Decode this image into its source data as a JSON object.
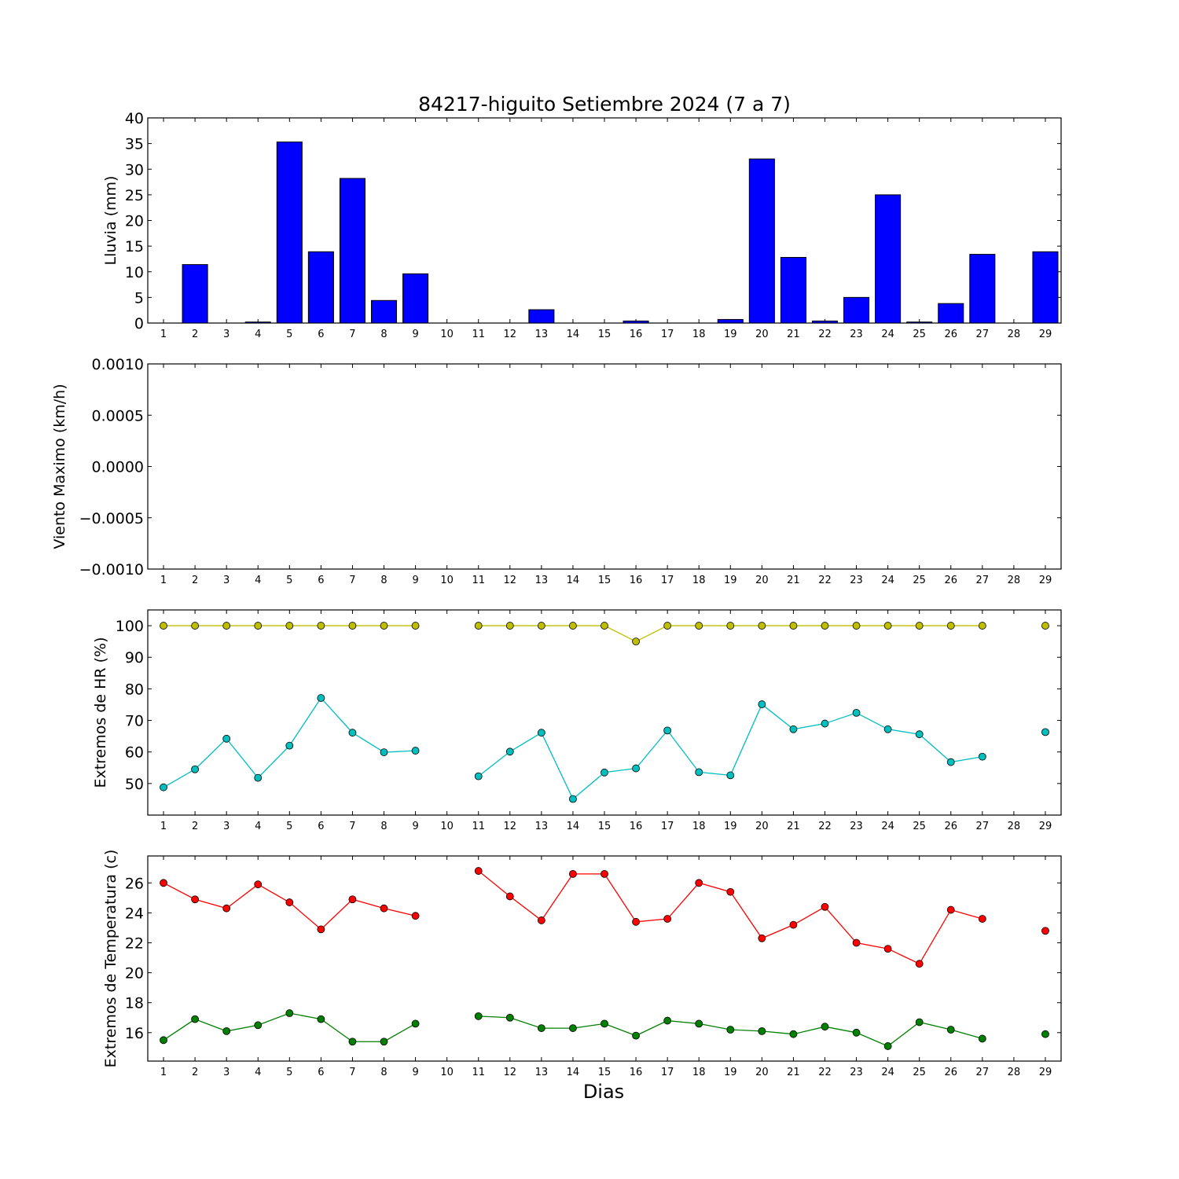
{
  "figure": {
    "title": "84217-higuito Setiembre 2024  (7 a 7)",
    "xlabel": "Dias"
  },
  "chart_data": [
    {
      "type": "bar",
      "ylabel": "Lluvia (mm)",
      "ylim": [
        0,
        40
      ],
      "yticks": [
        0,
        5,
        10,
        15,
        20,
        25,
        30,
        35,
        40
      ],
      "ytick_labels": [
        "0",
        "5",
        "10",
        "15",
        "20",
        "25",
        "30",
        "35",
        "40"
      ],
      "categories": [
        1,
        2,
        3,
        4,
        5,
        6,
        7,
        8,
        9,
        10,
        11,
        12,
        13,
        14,
        15,
        16,
        17,
        18,
        19,
        20,
        21,
        22,
        23,
        24,
        25,
        26,
        27,
        28,
        29
      ],
      "values": [
        0,
        11.4,
        0,
        0.2,
        35.3,
        13.9,
        28.2,
        4.4,
        9.6,
        0,
        0,
        0,
        2.6,
        0,
        0,
        0.4,
        0,
        0,
        0.7,
        32,
        12.8,
        0.4,
        5,
        25,
        0.2,
        3.8,
        13.4,
        0,
        13.9
      ],
      "color": "#0000ff"
    },
    {
      "type": "line",
      "ylabel": "Viento Maximo (km/h)",
      "ylim": [
        -0.001,
        0.001
      ],
      "yticks": [
        -0.001,
        -0.0005,
        0,
        0.0005,
        0.001
      ],
      "ytick_labels": [
        "−0.0010",
        "−0.0005",
        "0.0000",
        "0.0005",
        "0.0010"
      ],
      "categories": [
        1,
        2,
        3,
        4,
        5,
        6,
        7,
        8,
        9,
        10,
        11,
        12,
        13,
        14,
        15,
        16,
        17,
        18,
        19,
        20,
        21,
        22,
        23,
        24,
        25,
        26,
        27,
        28,
        29
      ],
      "series": []
    },
    {
      "type": "line",
      "ylabel": "Extremos de HR (%)",
      "ylim": [
        40,
        105
      ],
      "yticks": [
        50,
        60,
        70,
        80,
        90,
        100
      ],
      "ytick_labels": [
        "50",
        "60",
        "70",
        "80",
        "90",
        "100"
      ],
      "categories": [
        1,
        2,
        3,
        4,
        5,
        6,
        7,
        8,
        9,
        10,
        11,
        12,
        13,
        14,
        15,
        16,
        17,
        18,
        19,
        20,
        21,
        22,
        23,
        24,
        25,
        26,
        27,
        28,
        29
      ],
      "series": [
        {
          "color": "#bfbf00",
          "values": [
            100,
            100,
            100,
            100,
            100,
            100,
            100,
            100,
            100,
            null,
            100,
            100,
            100,
            100,
            100,
            95,
            100,
            100,
            100,
            100,
            100,
            100,
            100,
            100,
            100,
            100,
            100,
            null,
            100
          ]
        },
        {
          "color": "#00bfbf",
          "values": [
            48.8,
            54.5,
            64.2,
            51.8,
            62,
            77.1,
            66.1,
            59.9,
            60.4,
            null,
            52.3,
            60.1,
            66.1,
            45.1,
            53.5,
            54.8,
            66.8,
            53.6,
            52.6,
            75.1,
            67.2,
            69,
            72.4,
            67.2,
            65.6,
            56.8,
            58.5,
            null,
            66.3
          ]
        }
      ]
    },
    {
      "type": "line",
      "ylabel": "Extremos de Temperatura (c)",
      "ylim": [
        14.1,
        27.8
      ],
      "yticks": [
        16,
        18,
        20,
        22,
        24,
        26
      ],
      "ytick_labels": [
        "16",
        "18",
        "20",
        "22",
        "24",
        "26"
      ],
      "categories": [
        1,
        2,
        3,
        4,
        5,
        6,
        7,
        8,
        9,
        10,
        11,
        12,
        13,
        14,
        15,
        16,
        17,
        18,
        19,
        20,
        21,
        22,
        23,
        24,
        25,
        26,
        27,
        28,
        29
      ],
      "series": [
        {
          "color": "#ff0000",
          "values": [
            26,
            24.9,
            24.3,
            25.9,
            24.7,
            22.9,
            24.9,
            24.3,
            23.8,
            null,
            26.8,
            25.1,
            23.5,
            26.6,
            26.6,
            23.4,
            23.6,
            26,
            25.4,
            22.3,
            23.2,
            24.4,
            22,
            21.6,
            20.6,
            24.2,
            23.6,
            null,
            22.8
          ]
        },
        {
          "color": "#008000",
          "values": [
            15.5,
            16.9,
            16.1,
            16.5,
            17.3,
            16.9,
            15.4,
            15.4,
            16.6,
            null,
            17.1,
            17,
            16.3,
            16.3,
            16.6,
            15.8,
            16.8,
            16.6,
            16.2,
            16.1,
            15.9,
            16.4,
            16,
            15.1,
            16.7,
            16.2,
            15.6,
            null,
            15.9
          ]
        }
      ]
    }
  ]
}
